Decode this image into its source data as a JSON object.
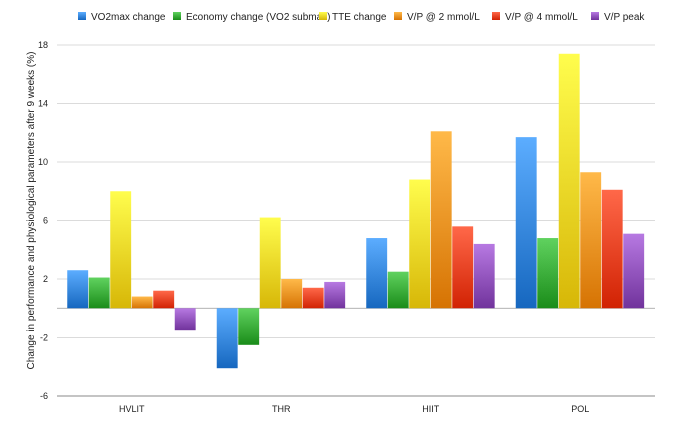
{
  "chart_data": {
    "type": "bar",
    "title": "",
    "xlabel": "",
    "ylabel": "Change in performance and physiological parameters after 9 weeks (%)",
    "categories": [
      "HVLIT",
      "THR",
      "HIIT",
      "POL"
    ],
    "ylim": [
      -6,
      18
    ],
    "yticks": [
      -6,
      -2,
      2,
      6,
      10,
      14,
      18
    ],
    "grid": true,
    "legend_position": "top",
    "series": [
      {
        "name": "VO2max change",
        "color": "#2f80d8",
        "values": [
          2.6,
          -4.1,
          4.8,
          11.7
        ]
      },
      {
        "name": "Economy change (VO2 submax)",
        "color": "#33a532",
        "values": [
          2.1,
          -2.5,
          2.5,
          4.8
        ]
      },
      {
        "name": "TTE change",
        "color": "#f0d020",
        "values": [
          8.0,
          6.2,
          8.8,
          17.4
        ]
      },
      {
        "name": "V/P @ 2 mmol/L",
        "color": "#ef8c1c",
        "values": [
          0.8,
          2.0,
          12.1,
          9.3
        ]
      },
      {
        "name": "V/P @ 4 mmol/L",
        "color": "#ea3b1c",
        "values": [
          1.2,
          1.4,
          5.6,
          8.1
        ]
      },
      {
        "name": "V/P peak",
        "color": "#8a4cb5",
        "values": [
          -1.5,
          1.8,
          4.4,
          5.1
        ]
      }
    ]
  }
}
